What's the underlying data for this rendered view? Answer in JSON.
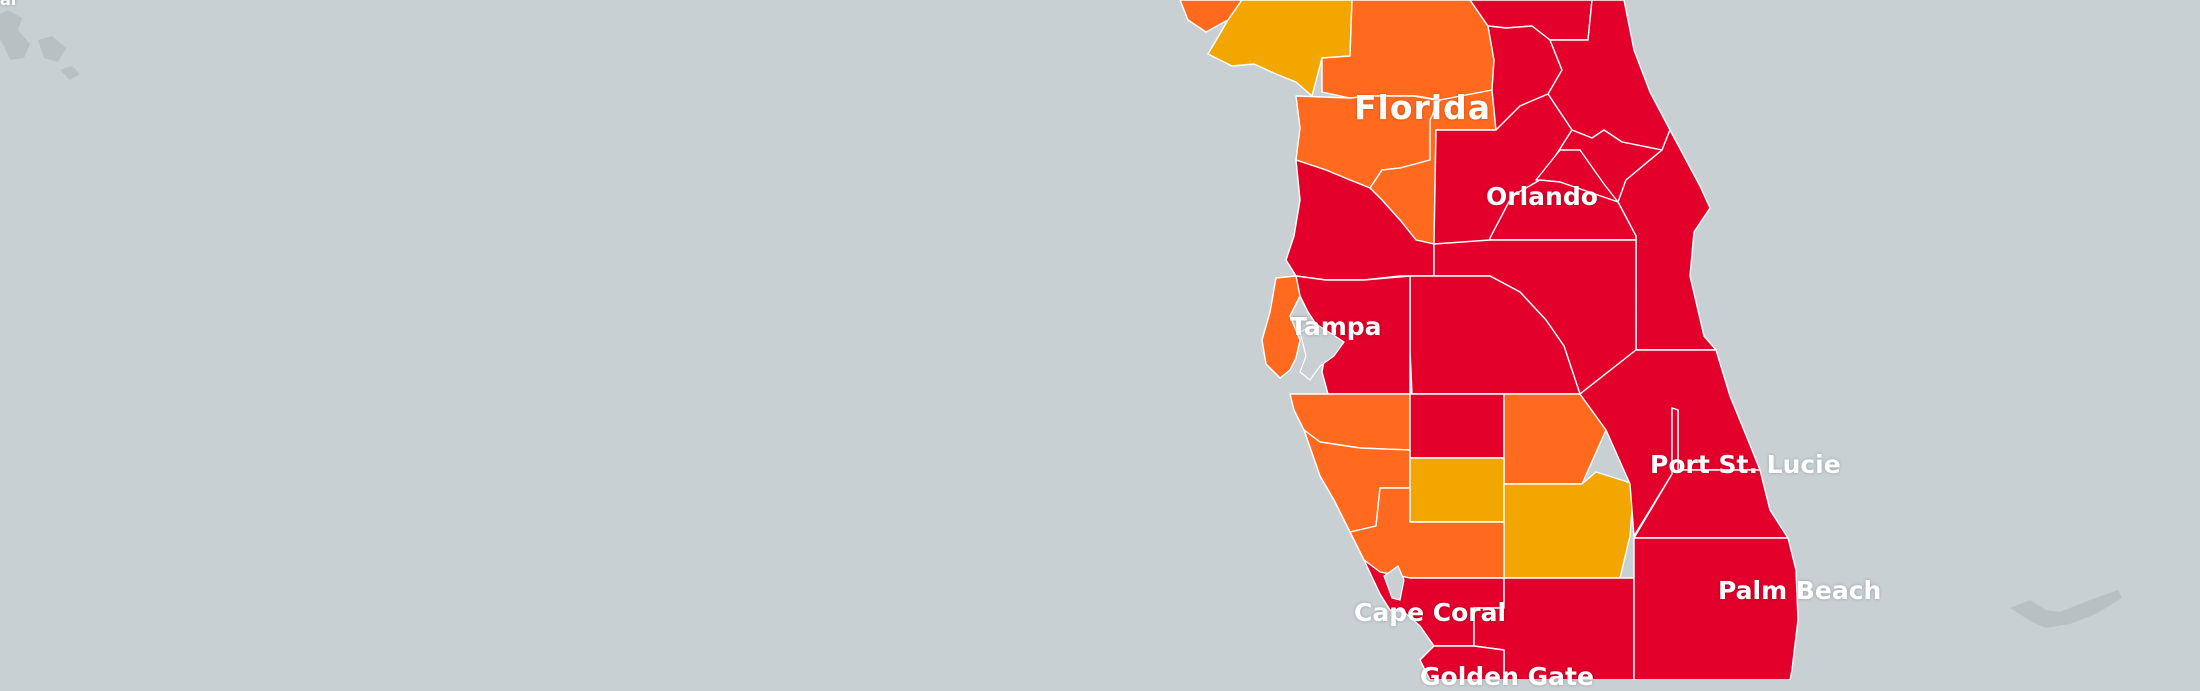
{
  "map": {
    "state_label": "Florida",
    "cities": [
      "Orlando",
      "Tampa",
      "Port St. Lucie",
      "Palm Beach",
      "Cape Coral",
      "Golden Gate"
    ],
    "corner_fragment": "al",
    "colors": {
      "water": "#c9d0d3",
      "land_island": "#b8c0c4",
      "red": "#e3002b",
      "orange": "#ff6a1f",
      "amber": "#f3a600",
      "border": "#ffffff",
      "label": "#ffffff"
    },
    "county_fill_classes": {
      "red": "highest",
      "orange": "middle",
      "amber": "lower"
    }
  }
}
